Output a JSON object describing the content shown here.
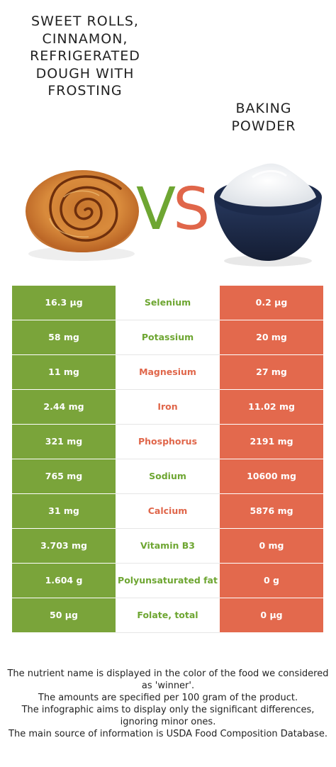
{
  "left_food": {
    "name": "Sweet rolls, cinnamon, refrigerated dough with frosting",
    "color": "#7aa43a"
  },
  "right_food": {
    "name": "Baking powder",
    "color": "#e3694d"
  },
  "vs": {
    "v": "V",
    "s": "S"
  },
  "rows": [
    {
      "left": "16.3 µg",
      "nutrient": "Selenium",
      "right": "0.2 µg",
      "winner": "left"
    },
    {
      "left": "58 mg",
      "nutrient": "Potassium",
      "right": "20 mg",
      "winner": "left"
    },
    {
      "left": "11 mg",
      "nutrient": "Magnesium",
      "right": "27 mg",
      "winner": "right"
    },
    {
      "left": "2.44 mg",
      "nutrient": "Iron",
      "right": "11.02 mg",
      "winner": "right"
    },
    {
      "left": "321 mg",
      "nutrient": "Phosphorus",
      "right": "2191 mg",
      "winner": "right"
    },
    {
      "left": "765 mg",
      "nutrient": "Sodium",
      "right": "10600 mg",
      "winner": "left"
    },
    {
      "left": "31 mg",
      "nutrient": "Calcium",
      "right": "5876 mg",
      "winner": "right"
    },
    {
      "left": "3.703 mg",
      "nutrient": "Vitamin B3",
      "right": "0 mg",
      "winner": "left"
    },
    {
      "left": "1.604 g",
      "nutrient": "Polyunsaturated fat",
      "right": "0 g",
      "winner": "left"
    },
    {
      "left": "50 µg",
      "nutrient": "Folate, total",
      "right": "0 µg",
      "winner": "left"
    }
  ],
  "footer": {
    "line1": "The nutrient name is displayed in the color of the food we considered as 'winner'.",
    "line2": "The amounts are specified per 100 gram of the product.",
    "line3": "The infographic aims to display only the significant differences, ignoring minor ones.",
    "line4": "The main source of information is USDA Food Composition Database."
  }
}
